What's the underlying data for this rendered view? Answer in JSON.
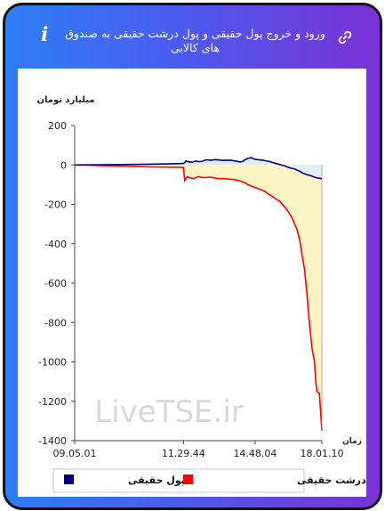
{
  "header": {
    "title": "ورود و خروج پول حقیقی و پول درشت حقیقی به صندوق های کالایی"
  },
  "icons": {
    "info": "info-icon",
    "link": "link-icon"
  },
  "watermark": "LiveTSE.ir",
  "colors": {
    "gradient_start": "#2f7ef6",
    "gradient_end": "#7a31d6",
    "series_real": "#00007f",
    "series_large": "#ff0000",
    "fill_real": "#dcecf6",
    "fill_large": "#fbf4c4"
  },
  "chart_data": {
    "type": "line",
    "title": "",
    "ylabel": "میلیارد تومان",
    "xlabel": "زمان",
    "ylim": [
      -1400,
      200
    ],
    "yticks": [
      200,
      0,
      -200,
      -400,
      -600,
      -800,
      -1000,
      -1200,
      -1400
    ],
    "x_tick_labels": [
      "09.05.01",
      "11.29.44",
      "14.48.04",
      "18.01.10"
    ],
    "x_tick_positions": [
      0,
      0.44,
      0.73,
      1
    ],
    "legend": {
      "position": "bottom",
      "entries": [
        "پول حقیقی",
        "پول درشت حقیقی"
      ]
    },
    "series": [
      {
        "name": "پول حقیقی",
        "color": "#00007f",
        "points": [
          [
            0,
            0
          ],
          [
            0.1,
            1
          ],
          [
            0.2,
            2
          ],
          [
            0.3,
            4
          ],
          [
            0.4,
            6
          ],
          [
            0.43,
            7
          ],
          [
            0.44,
            8
          ],
          [
            0.445,
            12
          ],
          [
            0.45,
            20
          ],
          [
            0.46,
            16
          ],
          [
            0.475,
            14
          ],
          [
            0.49,
            20
          ],
          [
            0.5,
            17
          ],
          [
            0.515,
            18
          ],
          [
            0.53,
            26
          ],
          [
            0.55,
            24
          ],
          [
            0.57,
            27
          ],
          [
            0.6,
            23
          ],
          [
            0.63,
            24
          ],
          [
            0.65,
            20
          ],
          [
            0.67,
            15
          ],
          [
            0.68,
            18
          ],
          [
            0.685,
            23
          ],
          [
            0.7,
            33
          ],
          [
            0.715,
            37
          ],
          [
            0.725,
            30
          ],
          [
            0.74,
            27
          ],
          [
            0.76,
            24
          ],
          [
            0.79,
            17
          ],
          [
            0.81,
            9
          ],
          [
            0.83,
            2
          ],
          [
            0.85,
            -5
          ],
          [
            0.87,
            -15
          ],
          [
            0.89,
            -20
          ],
          [
            0.9,
            -27
          ],
          [
            0.91,
            -32
          ],
          [
            0.92,
            -40
          ],
          [
            0.94,
            -50
          ],
          [
            0.955,
            -55
          ],
          [
            0.97,
            -62
          ],
          [
            0.985,
            -67
          ],
          [
            1,
            -70
          ]
        ]
      },
      {
        "name": "پول درشت حقیقی",
        "color": "#ff0000",
        "points": [
          [
            0,
            0
          ],
          [
            0.05,
            -1
          ],
          [
            0.1,
            -3
          ],
          [
            0.2,
            -6
          ],
          [
            0.3,
            -10
          ],
          [
            0.43,
            -12
          ],
          [
            0.44,
            -13
          ],
          [
            0.445,
            -80
          ],
          [
            0.455,
            -60
          ],
          [
            0.465,
            -65
          ],
          [
            0.48,
            -70
          ],
          [
            0.5,
            -60
          ],
          [
            0.52,
            -65
          ],
          [
            0.55,
            -62
          ],
          [
            0.58,
            -70
          ],
          [
            0.6,
            -70
          ],
          [
            0.62,
            -72
          ],
          [
            0.65,
            -75
          ],
          [
            0.67,
            -82
          ],
          [
            0.69,
            -90
          ],
          [
            0.7,
            -100
          ],
          [
            0.72,
            -110
          ],
          [
            0.74,
            -120
          ],
          [
            0.75,
            -125
          ],
          [
            0.77,
            -135
          ],
          [
            0.78,
            -145
          ],
          [
            0.8,
            -160
          ],
          [
            0.81,
            -170
          ],
          [
            0.83,
            -185
          ],
          [
            0.84,
            -200
          ],
          [
            0.86,
            -230
          ],
          [
            0.88,
            -270
          ],
          [
            0.89,
            -300
          ],
          [
            0.9,
            -330
          ],
          [
            0.91,
            -380
          ],
          [
            0.92,
            -460
          ],
          [
            0.93,
            -530
          ],
          [
            0.94,
            -660
          ],
          [
            0.95,
            -810
          ],
          [
            0.96,
            -930
          ],
          [
            0.97,
            -1000
          ],
          [
            0.975,
            -1100
          ],
          [
            0.98,
            -1150
          ],
          [
            0.99,
            -1160
          ],
          [
            1,
            -1350
          ]
        ]
      }
    ]
  }
}
